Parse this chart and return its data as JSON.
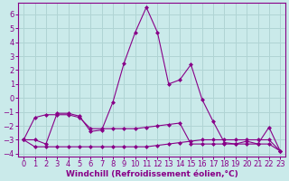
{
  "background_color": "#caeaea",
  "grid_color": "#b0d4d4",
  "line_color": "#880088",
  "xlabel": "Windchill (Refroidissement éolien,°C)",
  "xlim": [
    -0.5,
    23.5
  ],
  "ylim": [
    -4.2,
    6.8
  ],
  "xticks": [
    0,
    1,
    2,
    3,
    4,
    5,
    6,
    7,
    8,
    9,
    10,
    11,
    12,
    13,
    14,
    15,
    16,
    17,
    18,
    19,
    20,
    21,
    22,
    23
  ],
  "yticks": [
    -4,
    -3,
    -2,
    -1,
    0,
    1,
    2,
    3,
    4,
    5,
    6
  ],
  "line1_x": [
    0,
    1,
    2,
    3,
    4,
    5,
    6,
    7,
    8,
    9,
    10,
    11,
    12,
    13,
    14,
    15,
    16,
    17,
    18,
    19,
    20,
    21,
    22,
    23
  ],
  "line1_y": [
    -3.0,
    -3.0,
    -3.3,
    -1.1,
    -1.1,
    -1.3,
    -2.4,
    -2.3,
    -0.3,
    2.5,
    4.7,
    6.5,
    4.7,
    1.0,
    1.3,
    2.4,
    -0.1,
    -1.7,
    -3.2,
    -3.3,
    -3.1,
    -3.3,
    -2.1,
    -3.8
  ],
  "line2_x": [
    0,
    1,
    2,
    3,
    4,
    5,
    6,
    7,
    8,
    9,
    10,
    11,
    12,
    13,
    14,
    15,
    16,
    17,
    18,
    19,
    20,
    21,
    22,
    23
  ],
  "line2_y": [
    -3.0,
    -1.4,
    -1.2,
    -1.2,
    -1.2,
    -1.4,
    -2.2,
    -2.2,
    -2.2,
    -2.2,
    -2.2,
    -2.1,
    -2.0,
    -1.9,
    -1.8,
    -3.3,
    -3.3,
    -3.3,
    -3.3,
    -3.3,
    -3.3,
    -3.3,
    -3.3,
    -3.8
  ],
  "line3_x": [
    0,
    1,
    2,
    3,
    4,
    5,
    6,
    7,
    8,
    9,
    10,
    11,
    12,
    13,
    14,
    15,
    16,
    17,
    18,
    19,
    20,
    21,
    22,
    23
  ],
  "line3_y": [
    -3.0,
    -3.5,
    -3.5,
    -3.5,
    -3.5,
    -3.5,
    -3.5,
    -3.5,
    -3.5,
    -3.5,
    -3.5,
    -3.5,
    -3.4,
    -3.3,
    -3.2,
    -3.1,
    -3.0,
    -3.0,
    -3.0,
    -3.0,
    -3.0,
    -3.0,
    -3.0,
    -3.8
  ],
  "font_color": "#880088",
  "fontsize_label": 6.5,
  "fontsize_tick": 6.0
}
